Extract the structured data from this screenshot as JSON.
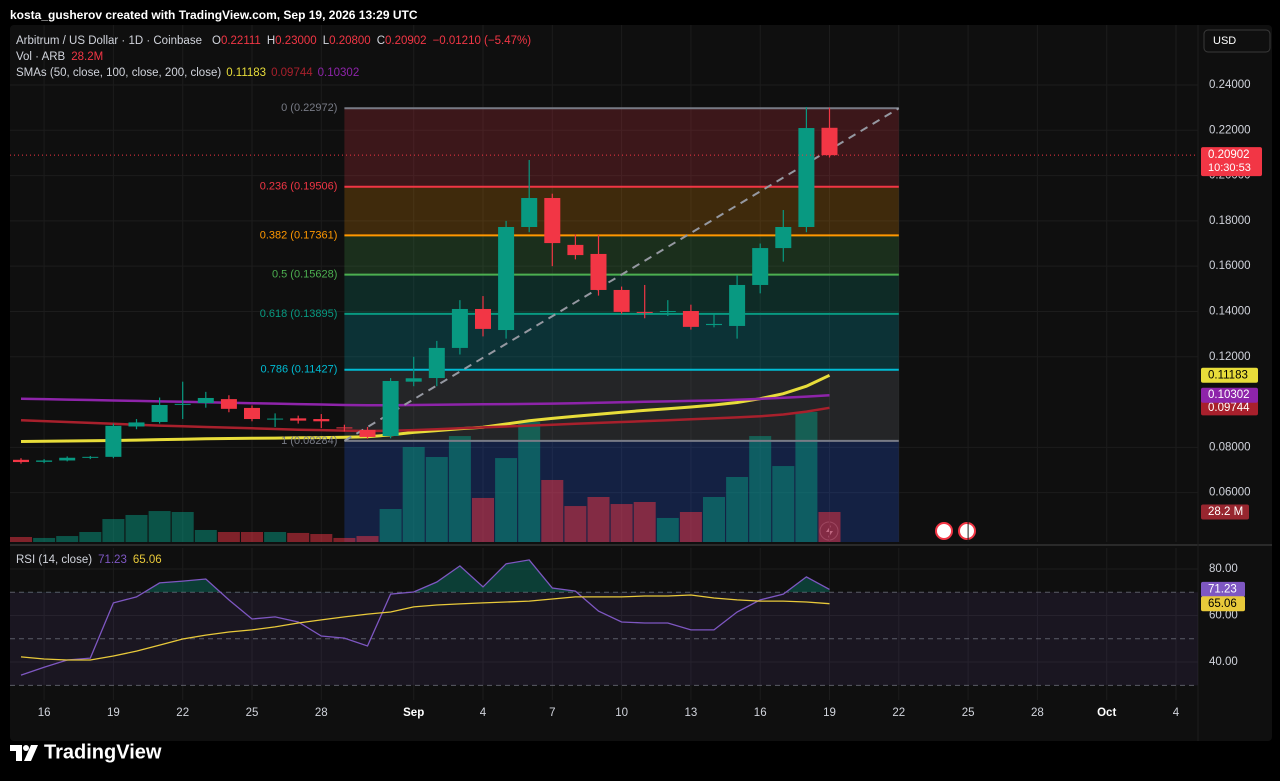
{
  "header": "kosta_gusherov created with TradingView.com, Sep 19, 2026 13:29 UTC",
  "brand": "TradingView",
  "currency": "USD",
  "chart_data": {
    "type": "candlestick",
    "title": "Arbitrum / US Dollar · 1D · Coinbase",
    "ohlc_legend": [
      {
        "label": "O",
        "value": "0.22111"
      },
      {
        "label": "H",
        "value": "0.23000"
      },
      {
        "label": "L",
        "value": "0.20800"
      },
      {
        "label": "C",
        "value": "0.20902"
      }
    ],
    "change": "−0.01210 (−5.47%)",
    "categories": [
      null,
      "16",
      null,
      null,
      "19",
      null,
      null,
      "22",
      null,
      null,
      "25",
      null,
      null,
      "28",
      null,
      null,
      null,
      "Sep",
      null,
      null,
      "4",
      null,
      null,
      "7",
      null,
      null,
      "10",
      null,
      null,
      "13",
      null,
      null,
      "16",
      null,
      null,
      "19",
      null,
      null,
      "22",
      null,
      null,
      "25",
      null,
      null,
      "28",
      null,
      null,
      "Oct",
      null,
      null,
      "4"
    ],
    "open": [
      0.0745,
      0.0736,
      0.0742,
      0.0755,
      0.0758,
      0.0892,
      0.0912,
      0.0988,
      0.0996,
      0.1013,
      0.0974,
      0.0924,
      0.0928,
      0.0925,
      0.0888,
      0.0877,
      0.085,
      0.109,
      0.1106,
      0.1239,
      0.1411,
      0.1318,
      0.1773,
      0.1901,
      0.1694,
      0.1654,
      0.1495,
      0.1398,
      0.1398,
      0.1402,
      0.134,
      0.1336,
      0.1517,
      0.168,
      0.1773,
      0.22111,
      null,
      null,
      null,
      null,
      null,
      null,
      null,
      null,
      null,
      null,
      null,
      null,
      null,
      null,
      null
    ],
    "high": [
      0.0752,
      0.0748,
      0.076,
      0.0762,
      0.0905,
      0.0925,
      0.102,
      0.109,
      0.1045,
      0.103,
      0.0985,
      0.095,
      0.094,
      0.0947,
      0.09,
      0.089,
      0.1106,
      0.12,
      0.127,
      0.145,
      0.1468,
      0.18,
      0.2069,
      0.192,
      0.174,
      0.1738,
      0.151,
      0.1517,
      0.145,
      0.143,
      0.139,
      0.156,
      0.17,
      0.1848,
      0.2303,
      0.23,
      null,
      null,
      null,
      null,
      null,
      null,
      null,
      null,
      null,
      null,
      null,
      null,
      null,
      null,
      null
    ],
    "low": [
      0.0728,
      0.073,
      0.0738,
      0.0748,
      0.0752,
      0.088,
      0.0905,
      0.0925,
      0.0975,
      0.0955,
      0.0915,
      0.089,
      0.0905,
      0.0885,
      0.087,
      0.0838,
      0.084,
      0.107,
      0.107,
      0.121,
      0.129,
      0.128,
      0.175,
      0.16,
      0.163,
      0.147,
      0.139,
      0.137,
      0.138,
      0.132,
      0.133,
      0.128,
      0.148,
      0.162,
      0.175,
      0.208,
      null,
      null,
      null,
      null,
      null,
      null,
      null,
      null,
      null,
      null,
      null,
      null,
      null,
      null,
      null
    ],
    "close": [
      0.0735,
      0.0742,
      0.0754,
      0.0758,
      0.0895,
      0.091,
      0.0987,
      0.0992,
      0.1018,
      0.097,
      0.0925,
      0.0927,
      0.0918,
      0.0915,
      0.0884,
      0.0846,
      0.1093,
      0.1105,
      0.1239,
      0.1411,
      0.1323,
      0.1773,
      0.1901,
      0.1702,
      0.1649,
      0.1495,
      0.1398,
      0.1396,
      0.1402,
      0.1332,
      0.1345,
      0.1517,
      0.168,
      0.1773,
      0.221,
      0.20902,
      null,
      null,
      null,
      null,
      null,
      null,
      null,
      null,
      null,
      null,
      null,
      null,
      null,
      null,
      null
    ],
    "up_color": "#089981",
    "down_color": "#f23645",
    "ylim": [
      0.0382,
      0.2665
    ],
    "yticks": [
      {
        "value": 0.24,
        "label": "0.24000"
      },
      {
        "value": 0.22,
        "label": "0.22000"
      },
      {
        "value": 0.2,
        "label": "0.20000"
      },
      {
        "value": 0.18,
        "label": "0.18000"
      },
      {
        "value": 0.16,
        "label": "0.16000"
      },
      {
        "value": 0.14,
        "label": "0.14000"
      },
      {
        "value": 0.12,
        "label": "0.12000"
      },
      {
        "value": 0.08,
        "label": "0.08000"
      },
      {
        "value": 0.06,
        "label": "0.06000"
      }
    ],
    "grid": true,
    "last_price": {
      "value": 0.20902,
      "label": "0.20902",
      "countdown": "10:30:53"
    },
    "volume": {
      "title": "Vol · ARB",
      "legend_value": "28.2M",
      "value_label": "28.2 M",
      "lim": [
        0,
        486
      ],
      "values": [
        4.7,
        3.8,
        5.6,
        9.4,
        21.6,
        25.4,
        29.1,
        28.2,
        11.3,
        9.4,
        9.4,
        9.4,
        8.5,
        7.5,
        3.8,
        5.6,
        31.0,
        89.3,
        79.9,
        99.6,
        41.4,
        78.9,
        112.8,
        58.3,
        33.8,
        42.3,
        35.7,
        37.6,
        22.6,
        28.2,
        42.3,
        61.1,
        99.6,
        71.4,
        122.2,
        28.2,
        null,
        null,
        null,
        null,
        null,
        null,
        null,
        null,
        null,
        null,
        null,
        null,
        null,
        null,
        null
      ]
    },
    "smas": {
      "title": "SMAs (50, close, 100, close, 200, close)",
      "series": [
        {
          "color": "#e8dd3a",
          "value_label": "0.11183",
          "values": [
            0.0826,
            0.0827,
            0.0828,
            0.0829,
            0.083,
            0.0832,
            0.0834,
            0.0836,
            0.0838,
            0.0839,
            0.084,
            0.0841,
            0.0842,
            0.0843,
            0.0845,
            0.0847,
            0.0855,
            0.0866,
            0.0874,
            0.0882,
            0.0889,
            0.0903,
            0.0917,
            0.0928,
            0.0937,
            0.0946,
            0.0955,
            0.0963,
            0.097,
            0.0978,
            0.0987,
            0.0998,
            0.1015,
            0.1037,
            0.107,
            0.11183,
            null,
            null,
            null,
            null,
            null,
            null,
            null,
            null,
            null,
            null,
            null,
            null,
            null,
            null,
            null
          ]
        },
        {
          "color": "#a8202c",
          "value_label": "0.09744",
          "values": [
            0.092,
            0.0916,
            0.0912,
            0.0908,
            0.0904,
            0.09,
            0.0896,
            0.0893,
            0.089,
            0.0887,
            0.0884,
            0.0881,
            0.0878,
            0.0876,
            0.0874,
            0.0872,
            0.0873,
            0.0876,
            0.088,
            0.0884,
            0.0888,
            0.0892,
            0.0896,
            0.09,
            0.0904,
            0.0908,
            0.0912,
            0.0916,
            0.092,
            0.0924,
            0.0928,
            0.0932,
            0.0937,
            0.0945,
            0.0958,
            0.09744,
            null,
            null,
            null,
            null,
            null,
            null,
            null,
            null,
            null,
            null,
            null,
            null,
            null,
            null,
            null
          ]
        },
        {
          "color": "#8e24aa",
          "value_label": "0.10302",
          "values": [
            0.1015,
            0.1013,
            0.1011,
            0.1009,
            0.1007,
            0.1005,
            0.1003,
            0.1001,
            0.0999,
            0.0997,
            0.0995,
            0.0993,
            0.0991,
            0.0989,
            0.0987,
            0.0986,
            0.0986,
            0.0987,
            0.0988,
            0.0989,
            0.099,
            0.0991,
            0.0992,
            0.0993,
            0.0995,
            0.0997,
            0.0999,
            0.1001,
            0.1003,
            0.1005,
            0.1007,
            0.101,
            0.1014,
            0.1019,
            0.1024,
            0.10302,
            null,
            null,
            null,
            null,
            null,
            null,
            null,
            null,
            null,
            null,
            null,
            null,
            null,
            null,
            null
          ]
        }
      ]
    },
    "fib": {
      "levels": [
        {
          "value": 0.22972,
          "label": "0 (0.22972)",
          "color": "#787b86"
        },
        {
          "value": 0.19506,
          "label": "0.236 (0.19506)",
          "color": "#f23645"
        },
        {
          "value": 0.17361,
          "label": "0.382 (0.17361)",
          "color": "#ff9800"
        },
        {
          "value": 0.15628,
          "label": "0.5 (0.15628)",
          "color": "#4caf50"
        },
        {
          "value": 0.13895,
          "label": "0.618 (0.13895)",
          "color": "#089981"
        },
        {
          "value": 0.11427,
          "label": "0.786 (0.11427)",
          "color": "#00bcd4"
        },
        {
          "value": 0.08284,
          "label": "1 (0.08284)",
          "color": "#787b86"
        }
      ]
    },
    "rsi": {
      "title": "RSI (14, close)",
      "ylim": [
        23.7,
        89
      ],
      "yticks": [
        {
          "value": 80,
          "label": "80.00"
        },
        {
          "value": 60,
          "label": "60.00"
        },
        {
          "value": 40,
          "label": "40.00"
        }
      ],
      "levels": [
        70,
        50,
        30
      ],
      "overbought_color": "#089981",
      "series": [
        {
          "color": "#7e57c2",
          "value_label": "71.23",
          "values": [
            34.4,
            37.8,
            40.9,
            41.7,
            65.4,
            68,
            74,
            74.8,
            75.7,
            66.7,
            58.5,
            59.4,
            57.2,
            51.2,
            50.3,
            46.9,
            69.2,
            70.1,
            74.4,
            81.3,
            72.3,
            82.2,
            83.9,
            71.8,
            70.5,
            61.9,
            57.2,
            56.8,
            56.8,
            53.8,
            53.8,
            61.5,
            66.7,
            69.2,
            76.6,
            71.23,
            null,
            null,
            null,
            null,
            null,
            null,
            null,
            null,
            null,
            null,
            null,
            null,
            null,
            null,
            null
          ]
        },
        {
          "color": "#e8c93a",
          "value_label": "65.06",
          "values": [
            42.2,
            41.3,
            40.9,
            40.9,
            42.6,
            44.7,
            47.3,
            49.9,
            51.6,
            52.9,
            53.8,
            55.1,
            56.8,
            58.1,
            59.4,
            60.6,
            61.5,
            63.7,
            64.5,
            65,
            65.4,
            65.8,
            66.2,
            67.1,
            68,
            68,
            68,
            68.4,
            68.4,
            68.8,
            67.5,
            66.7,
            66.2,
            66.2,
            65.8,
            65.06,
            null,
            null,
            null,
            null,
            null,
            null,
            null,
            null,
            null,
            null,
            null,
            null,
            null,
            null,
            null
          ]
        }
      ]
    }
  }
}
